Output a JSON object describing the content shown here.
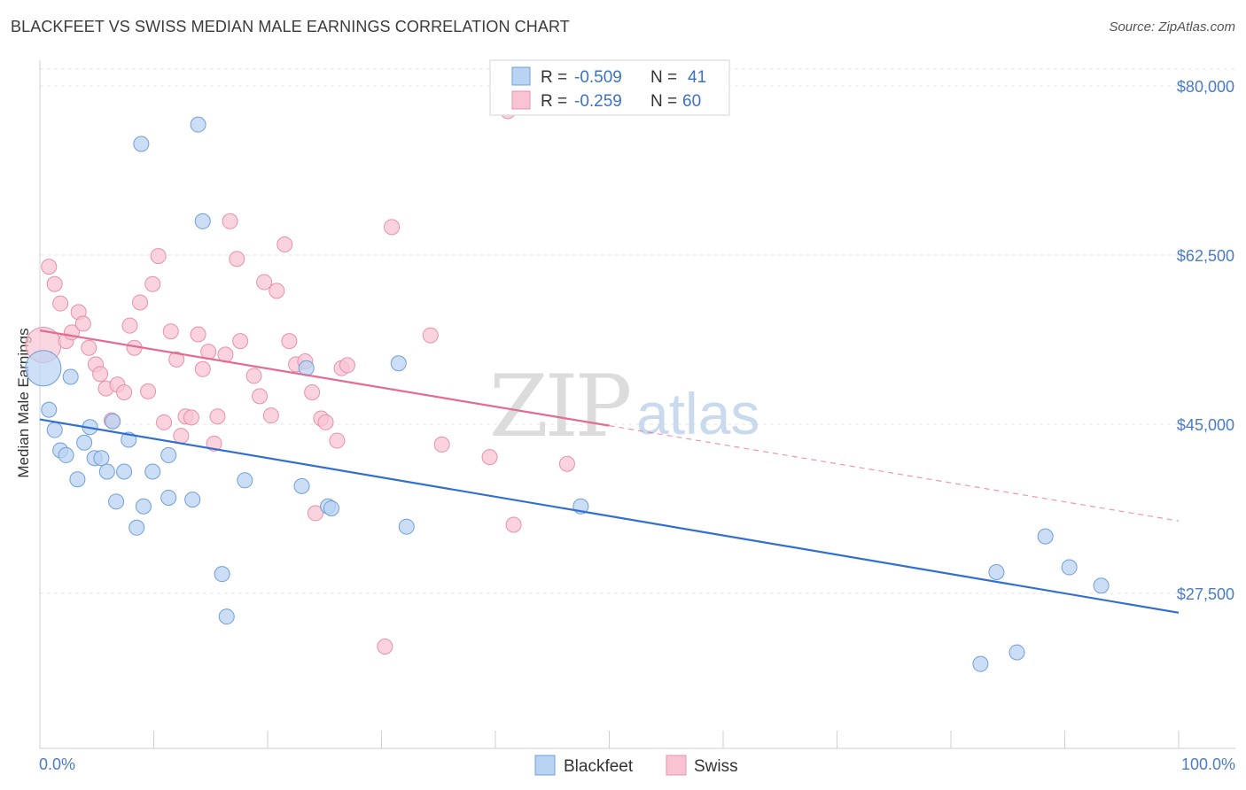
{
  "title": "BLACKFEET VS SWISS MEDIAN MALE EARNINGS CORRELATION CHART",
  "source": "Source: ZipAtlas.com",
  "watermark": {
    "zip": "ZIP",
    "atlas": "atlas"
  },
  "colors": {
    "blackfeet_fill": "#b9d3f3",
    "blackfeet_stroke": "#6f9fd8",
    "blackfeet_line": "#2f6fcf",
    "swiss_fill": "#f8c4d4",
    "swiss_stroke": "#e890ab",
    "swiss_line": "#e46b91",
    "axis_label": "#4a7cc4",
    "grid": "#e4e4e4"
  },
  "legend": {
    "rows": [
      {
        "r_label": "R =",
        "r_value": "-0.509",
        "n_label": "N =",
        "n_value": "41"
      },
      {
        "r_label": "R =",
        "r_value": "-0.259",
        "n_label": "N =",
        "n_value": "60"
      }
    ]
  },
  "bottom_legend": [
    "Blackfeet",
    "Swiss"
  ],
  "chart_data": {
    "type": "scatter",
    "title": "BLACKFEET VS SWISS MEDIAN MALE EARNINGS CORRELATION CHART",
    "xlabel": "",
    "ylabel": "Median Male Earnings",
    "xlim": [
      0,
      100
    ],
    "ylim": [
      12000,
      83000
    ],
    "x_tick_labels": [
      "0.0%",
      "100.0%"
    ],
    "y_ticks": [
      27500,
      45000,
      62500,
      80000
    ],
    "y_tick_labels": [
      "$27,500",
      "$45,000",
      "$62,500",
      "$80,000"
    ],
    "grid": true,
    "legend_placement": "top-center",
    "series": [
      {
        "name": "Blackfeet",
        "r": -0.509,
        "n": 41,
        "trend": {
          "x": [
            0,
            100
          ],
          "y": [
            45500,
            25500
          ]
        },
        "points": [
          {
            "x": 0.3,
            "y": 50800,
            "big": true
          },
          {
            "x": 0.8,
            "y": 46500
          },
          {
            "x": 1.3,
            "y": 44400
          },
          {
            "x": 1.8,
            "y": 42300
          },
          {
            "x": 2.3,
            "y": 41800
          },
          {
            "x": 2.7,
            "y": 49900
          },
          {
            "x": 3.3,
            "y": 39300
          },
          {
            "x": 3.9,
            "y": 43100
          },
          {
            "x": 4.4,
            "y": 44700
          },
          {
            "x": 4.8,
            "y": 41500
          },
          {
            "x": 5.4,
            "y": 41500
          },
          {
            "x": 5.9,
            "y": 40100
          },
          {
            "x": 6.4,
            "y": 45300
          },
          {
            "x": 6.7,
            "y": 37000
          },
          {
            "x": 7.4,
            "y": 40100
          },
          {
            "x": 7.8,
            "y": 43400
          },
          {
            "x": 8.5,
            "y": 34300
          },
          {
            "x": 8.9,
            "y": 74000
          },
          {
            "x": 9.1,
            "y": 36500
          },
          {
            "x": 9.9,
            "y": 40100
          },
          {
            "x": 11.3,
            "y": 41800
          },
          {
            "x": 11.3,
            "y": 37400
          },
          {
            "x": 13.4,
            "y": 37200
          },
          {
            "x": 13.9,
            "y": 76000
          },
          {
            "x": 14.3,
            "y": 66000
          },
          {
            "x": 16.0,
            "y": 29500
          },
          {
            "x": 16.4,
            "y": 25100
          },
          {
            "x": 18.0,
            "y": 39200
          },
          {
            "x": 23.0,
            "y": 38600
          },
          {
            "x": 23.4,
            "y": 50800
          },
          {
            "x": 25.3,
            "y": 36500
          },
          {
            "x": 25.6,
            "y": 36300
          },
          {
            "x": 31.5,
            "y": 51300
          },
          {
            "x": 32.2,
            "y": 34400
          },
          {
            "x": 47.5,
            "y": 36500
          },
          {
            "x": 82.6,
            "y": 20200
          },
          {
            "x": 84.0,
            "y": 29700
          },
          {
            "x": 85.8,
            "y": 21400
          },
          {
            "x": 88.3,
            "y": 33400
          },
          {
            "x": 90.4,
            "y": 30200
          },
          {
            "x": 93.2,
            "y": 28300
          }
        ]
      },
      {
        "name": "Swiss",
        "r": -0.259,
        "n": 60,
        "trend": {
          "x": [
            0,
            100
          ],
          "y": [
            54700,
            35000
          ],
          "solid_until_x": 50
        },
        "points": [
          {
            "x": 0.3,
            "y": 53200,
            "big": true
          },
          {
            "x": 0.8,
            "y": 61300
          },
          {
            "x": 1.3,
            "y": 59500
          },
          {
            "x": 1.8,
            "y": 57500
          },
          {
            "x": 2.3,
            "y": 53600
          },
          {
            "x": 2.8,
            "y": 54500
          },
          {
            "x": 3.4,
            "y": 56600
          },
          {
            "x": 3.8,
            "y": 55400
          },
          {
            "x": 4.3,
            "y": 52900
          },
          {
            "x": 4.9,
            "y": 51200
          },
          {
            "x": 5.3,
            "y": 50200
          },
          {
            "x": 5.8,
            "y": 48700
          },
          {
            "x": 6.3,
            "y": 45400
          },
          {
            "x": 6.8,
            "y": 49100
          },
          {
            "x": 7.4,
            "y": 48300
          },
          {
            "x": 7.9,
            "y": 55200
          },
          {
            "x": 8.3,
            "y": 52900
          },
          {
            "x": 8.8,
            "y": 57600
          },
          {
            "x": 9.5,
            "y": 48400
          },
          {
            "x": 9.9,
            "y": 59500
          },
          {
            "x": 10.4,
            "y": 62400
          },
          {
            "x": 10.9,
            "y": 45200
          },
          {
            "x": 11.5,
            "y": 54600
          },
          {
            "x": 12.0,
            "y": 51700
          },
          {
            "x": 12.4,
            "y": 43800
          },
          {
            "x": 12.8,
            "y": 45800
          },
          {
            "x": 13.3,
            "y": 45700
          },
          {
            "x": 13.9,
            "y": 54300
          },
          {
            "x": 14.3,
            "y": 50700
          },
          {
            "x": 14.8,
            "y": 52500
          },
          {
            "x": 15.3,
            "y": 43000
          },
          {
            "x": 15.6,
            "y": 45800
          },
          {
            "x": 16.3,
            "y": 52200
          },
          {
            "x": 16.7,
            "y": 66000
          },
          {
            "x": 17.3,
            "y": 62100
          },
          {
            "x": 17.6,
            "y": 53600
          },
          {
            "x": 18.8,
            "y": 50000
          },
          {
            "x": 19.3,
            "y": 47900
          },
          {
            "x": 19.7,
            "y": 59700
          },
          {
            "x": 20.3,
            "y": 45900
          },
          {
            "x": 20.8,
            "y": 58800
          },
          {
            "x": 21.5,
            "y": 63600
          },
          {
            "x": 21.9,
            "y": 53600
          },
          {
            "x": 22.5,
            "y": 51200
          },
          {
            "x": 23.3,
            "y": 51500
          },
          {
            "x": 23.9,
            "y": 48300
          },
          {
            "x": 24.7,
            "y": 45600
          },
          {
            "x": 25.1,
            "y": 45200
          },
          {
            "x": 26.1,
            "y": 43300
          },
          {
            "x": 26.5,
            "y": 50800
          },
          {
            "x": 27.0,
            "y": 51100
          },
          {
            "x": 30.3,
            "y": 22000
          },
          {
            "x": 30.9,
            "y": 65400
          },
          {
            "x": 34.3,
            "y": 54200
          },
          {
            "x": 35.3,
            "y": 42900
          },
          {
            "x": 39.5,
            "y": 41600
          },
          {
            "x": 41.1,
            "y": 77400
          },
          {
            "x": 41.6,
            "y": 34600
          },
          {
            "x": 46.3,
            "y": 40900
          },
          {
            "x": 24.2,
            "y": 35800
          }
        ]
      }
    ]
  }
}
